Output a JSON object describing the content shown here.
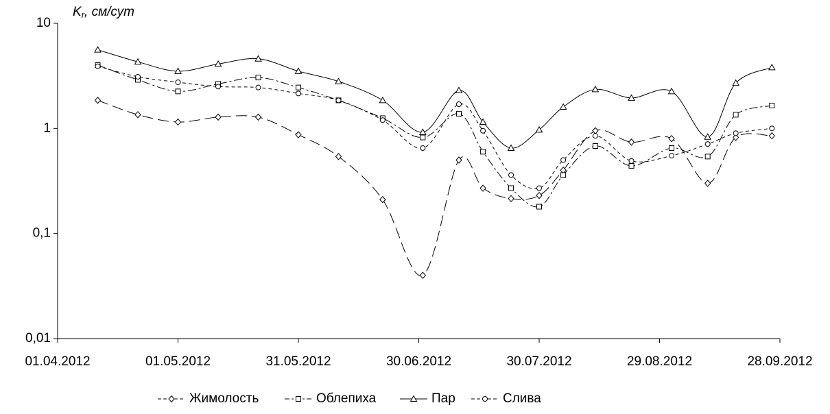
{
  "chart_data": {
    "type": "line",
    "y_scale": "log",
    "y_label": {
      "symbol": "K",
      "subscript": "r",
      "unit": ", см/сут"
    },
    "x": [
      "11.04.2012",
      "21.04.2012",
      "01.05.2012",
      "11.05.2012",
      "21.05.2012",
      "31.05.2012",
      "10.06.2012",
      "21.06.2012",
      "01.07.2012",
      "10.07.2012",
      "16.07.2012",
      "23.07.2012",
      "30.07.2012",
      "05.08.2012",
      "13.08.2012",
      "22.08.2012",
      "01.09.2012",
      "10.09.2012",
      "17.09.2012",
      "26.09.2012"
    ],
    "xlim": [
      "01.04.2012",
      "28.09.2012"
    ],
    "xticks": [
      "01.04.2012",
      "01.05.2012",
      "31.05.2012",
      "30.06.2012",
      "30.07.2012",
      "29.08.2012",
      "28.09.2012"
    ],
    "ylim": [
      0.01,
      10
    ],
    "yticks": [
      {
        "value": 0.01,
        "label": "0,01"
      },
      {
        "value": 0.1,
        "label": "0,1"
      },
      1,
      10
    ],
    "series": [
      {
        "name": "Жимолость",
        "color": "#000000",
        "marker": "diamond",
        "dash": "16,7",
        "values": [
          1.85,
          1.35,
          1.15,
          1.28,
          1.28,
          0.87,
          0.54,
          0.21,
          0.04,
          0.5,
          0.27,
          0.215,
          0.23,
          0.4,
          0.95,
          0.74,
          0.8,
          0.3,
          0.82,
          0.85
        ]
      },
      {
        "name": "Облепиха",
        "color": "#000000",
        "marker": "square",
        "dash": "12,4,3,4",
        "values": [
          4.0,
          2.9,
          2.25,
          2.65,
          3.05,
          2.45,
          1.85,
          1.25,
          0.82,
          1.38,
          0.6,
          0.27,
          0.18,
          0.36,
          0.68,
          0.44,
          0.65,
          0.54,
          1.35,
          1.65
        ]
      },
      {
        "name": "Пар",
        "color": "#000000",
        "marker": "triangle",
        "dash": "none",
        "values": [
          5.6,
          4.3,
          3.5,
          4.1,
          4.6,
          3.5,
          2.8,
          1.85,
          0.92,
          2.3,
          1.15,
          0.65,
          0.97,
          1.6,
          2.35,
          1.95,
          2.25,
          0.83,
          2.7,
          3.8
        ]
      },
      {
        "name": "Слива",
        "color": "#000000",
        "marker": "circle",
        "dash": "5,4",
        "values": [
          3.9,
          3.1,
          2.75,
          2.5,
          2.45,
          2.15,
          1.85,
          1.2,
          0.65,
          1.7,
          0.95,
          0.36,
          0.27,
          0.5,
          0.85,
          0.49,
          0.55,
          0.71,
          0.9,
          1.0
        ]
      }
    ],
    "legend": "bottom"
  }
}
